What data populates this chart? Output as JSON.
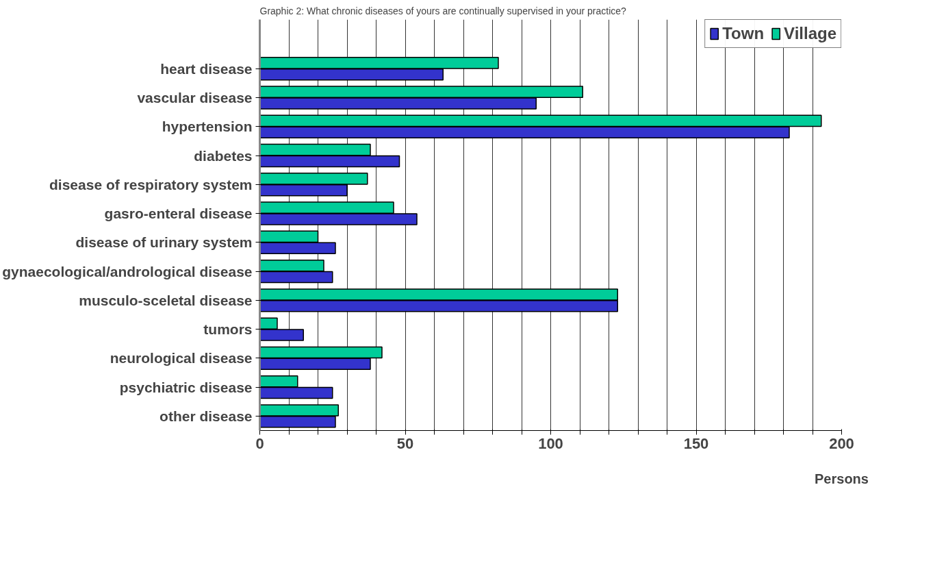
{
  "chart_data": {
    "type": "bar",
    "orientation": "horizontal",
    "title": "Graphic 2: What chronic diseases of yours are continually supervised in your practice?",
    "xlabel": "Persons",
    "categories": [
      "heart disease",
      "vascular disease",
      "hypertension",
      "diabetes",
      "disease of respiratory system",
      "gasro-enteral disease",
      "disease of urinary system",
      "gynaecological/andrological disease",
      "musculo-sceletal disease",
      "tumors",
      "neurological disease",
      "psychiatric disease",
      "other disease"
    ],
    "series": [
      {
        "name": "Town",
        "color": "#3333cc",
        "values": [
          63,
          95,
          182,
          48,
          30,
          54,
          26,
          25,
          123,
          15,
          38,
          25,
          26
        ]
      },
      {
        "name": "Village",
        "color": "#00cc99",
        "values": [
          82,
          111,
          193,
          38,
          37,
          46,
          20,
          22,
          123,
          6,
          42,
          13,
          27
        ]
      }
    ],
    "xlim": [
      0,
      200
    ],
    "xticks": [
      0,
      {
        "value": 10,
        "label": null
      },
      {
        "value": 20,
        "label": null
      },
      {
        "value": 30,
        "label": null
      },
      {
        "value": 40,
        "label": null
      },
      50,
      {
        "value": 60,
        "label": null
      },
      {
        "value": 70,
        "label": null
      },
      {
        "value": 80,
        "label": null
      },
      {
        "value": 90,
        "label": null
      },
      100,
      {
        "value": 110,
        "label": null
      },
      {
        "value": 120,
        "label": null
      },
      {
        "value": 130,
        "label": null
      },
      {
        "value": 140,
        "label": null
      },
      150,
      {
        "value": 160,
        "label": null
      },
      {
        "value": 170,
        "label": null
      },
      {
        "value": 180,
        "label": null
      },
      {
        "value": 190,
        "label": null
      },
      200
    ],
    "grid": "x",
    "legend": "top right"
  }
}
